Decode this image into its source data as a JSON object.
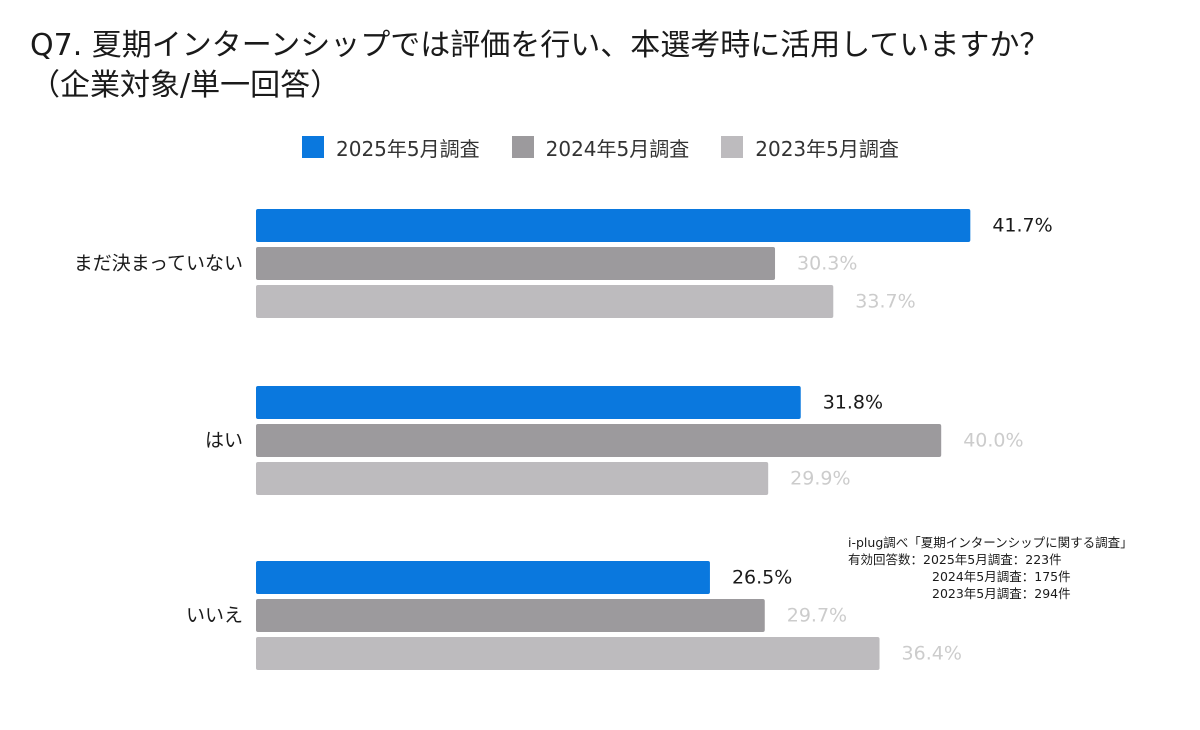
{
  "title": {
    "line1": "Q7. 夏期インターンシップでは評価を行い、本選考時に活用していますか？",
    "line2": "（企業対象/単一回答）"
  },
  "chart_data": {
    "type": "bar",
    "orientation": "horizontal",
    "categories": [
      "まだ決まっていない",
      "はい",
      "いいえ"
    ],
    "series": [
      {
        "name": "2025年5月調査",
        "values": [
          41.7,
          31.8,
          26.5
        ],
        "color": "#0a78de",
        "label_color": "#1a1a1a"
      },
      {
        "name": "2024年5月調査",
        "values": [
          30.3,
          40.0,
          29.7
        ],
        "color": "#9c9a9d",
        "label_color": "#cccccc"
      },
      {
        "name": "2023年5月調査",
        "values": [
          33.7,
          29.9,
          36.4
        ],
        "color": "#bdbbbe",
        "label_color": "#cccccc"
      }
    ],
    "value_suffix": "%",
    "xlim": [
      0,
      50
    ],
    "grid": false,
    "legend_position": "top"
  },
  "note": {
    "source": "i-plug調べ「夏期インターンシップに関する調査」",
    "responses_label": "有効回答数：2025年5月調査：223件",
    "responses_2024": "2024年5月調査：175件",
    "responses_2023": "2023年5月調査：294件"
  }
}
